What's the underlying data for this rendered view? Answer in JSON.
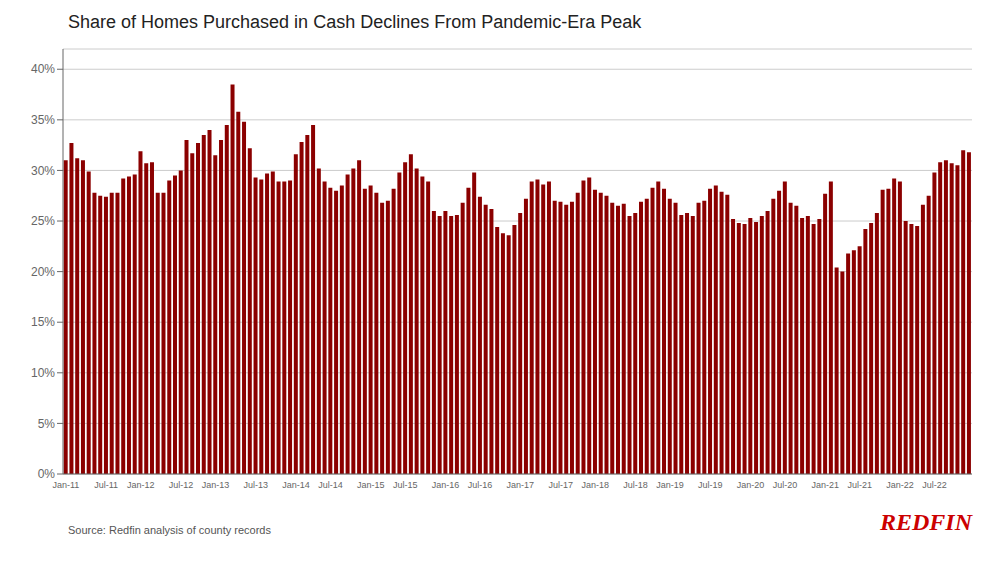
{
  "chart_data": {
    "type": "bar",
    "title": "Share of Homes Purchased in Cash Declines From Pandemic-Era Peak",
    "color": "#8B0000",
    "grid": true,
    "ylim": [
      0,
      0.42
    ],
    "yticks": [
      {
        "value": 0,
        "label": "0%"
      },
      {
        "value": 0.05,
        "label": "5%"
      },
      {
        "value": 0.1,
        "label": "10%"
      },
      {
        "value": 0.15,
        "label": "15%"
      },
      {
        "value": 0.2,
        "label": "20%"
      },
      {
        "value": 0.25,
        "label": "25%"
      },
      {
        "value": 0.3,
        "label": "30%"
      },
      {
        "value": 0.35,
        "label": "35%"
      },
      {
        "value": 0.4,
        "label": "40%"
      }
    ],
    "annotations": [
      {
        "text": "Source: Redfin analysis of county records"
      },
      {
        "text": "REDFIN",
        "color": "#CC0000"
      }
    ],
    "categories": [
      "Jan-11",
      null,
      null,
      null,
      null,
      null,
      null,
      "Jul-11",
      null,
      null,
      null,
      null,
      null,
      "Jan-12",
      null,
      null,
      null,
      null,
      null,
      null,
      "Jul-12",
      null,
      null,
      null,
      null,
      null,
      "Jan-13",
      null,
      null,
      null,
      null,
      null,
      null,
      "Jul-13",
      null,
      null,
      null,
      null,
      null,
      null,
      "Jan-14",
      null,
      null,
      null,
      null,
      null,
      "Jul-14",
      null,
      null,
      null,
      null,
      null,
      null,
      "Jan-15",
      null,
      null,
      null,
      null,
      null,
      "Jul-15",
      null,
      null,
      null,
      null,
      null,
      null,
      "Jan-16",
      null,
      null,
      null,
      null,
      null,
      "Jul-16",
      null,
      null,
      null,
      null,
      null,
      null,
      "Jan-17",
      null,
      null,
      null,
      null,
      null,
      null,
      "Jul-17",
      null,
      null,
      null,
      null,
      null,
      "Jan-18",
      null,
      null,
      null,
      null,
      null,
      null,
      "Jul-18",
      null,
      null,
      null,
      null,
      null,
      "Jan-19",
      null,
      null,
      null,
      null,
      null,
      null,
      "Jul-19",
      null,
      null,
      null,
      null,
      null,
      null,
      "Jan-20",
      null,
      null,
      null,
      null,
      null,
      "Jul-20",
      null,
      null,
      null,
      null,
      null,
      null,
      "Jan-21",
      null,
      null,
      null,
      null,
      null,
      "Jul-21",
      null,
      null,
      null,
      null,
      null,
      null,
      "Jan-22",
      null,
      null,
      null,
      null,
      null,
      "Jul-22",
      null,
      null,
      null,
      null,
      null,
      null
    ],
    "values": [
      0.31,
      0.327,
      0.312,
      0.31,
      0.299,
      0.278,
      0.275,
      0.274,
      0.278,
      0.278,
      0.292,
      0.294,
      0.296,
      0.319,
      0.307,
      0.308,
      0.278,
      0.278,
      0.29,
      0.295,
      0.3,
      0.33,
      0.317,
      0.327,
      0.335,
      0.34,
      0.315,
      0.33,
      0.345,
      0.385,
      0.358,
      0.348,
      0.322,
      0.293,
      0.291,
      0.297,
      0.299,
      0.289,
      0.289,
      0.29,
      0.316,
      0.328,
      0.335,
      0.345,
      0.302,
      0.289,
      0.283,
      0.28,
      0.285,
      0.296,
      0.302,
      0.31,
      0.282,
      0.285,
      0.278,
      0.268,
      0.27,
      0.282,
      0.298,
      0.308,
      0.316,
      0.302,
      0.294,
      0.289,
      0.26,
      0.255,
      0.26,
      0.255,
      0.256,
      0.268,
      0.283,
      0.298,
      0.274,
      0.266,
      0.262,
      0.244,
      0.238,
      0.236,
      0.246,
      0.258,
      0.272,
      0.289,
      0.291,
      0.286,
      0.289,
      0.27,
      0.269,
      0.266,
      0.269,
      0.278,
      0.29,
      0.293,
      0.281,
      0.278,
      0.275,
      0.268,
      0.265,
      0.267,
      0.255,
      0.258,
      0.269,
      0.272,
      0.283,
      0.289,
      0.282,
      0.272,
      0.268,
      0.256,
      0.258,
      0.255,
      0.268,
      0.27,
      0.282,
      0.285,
      0.279,
      0.276,
      0.252,
      0.248,
      0.247,
      0.253,
      0.249,
      0.255,
      0.26,
      0.272,
      0.28,
      0.289,
      0.268,
      0.265,
      0.253,
      0.255,
      0.247,
      0.252,
      0.277,
      0.289,
      0.204,
      0.2,
      0.218,
      0.221,
      0.225,
      0.242,
      0.248,
      0.258,
      0.281,
      0.282,
      0.292,
      0.289,
      0.25,
      0.247,
      0.245,
      0.266,
      0.275,
      0.298,
      0.308,
      0.31,
      0.307,
      0.305,
      0.32,
      0.318
    ]
  }
}
